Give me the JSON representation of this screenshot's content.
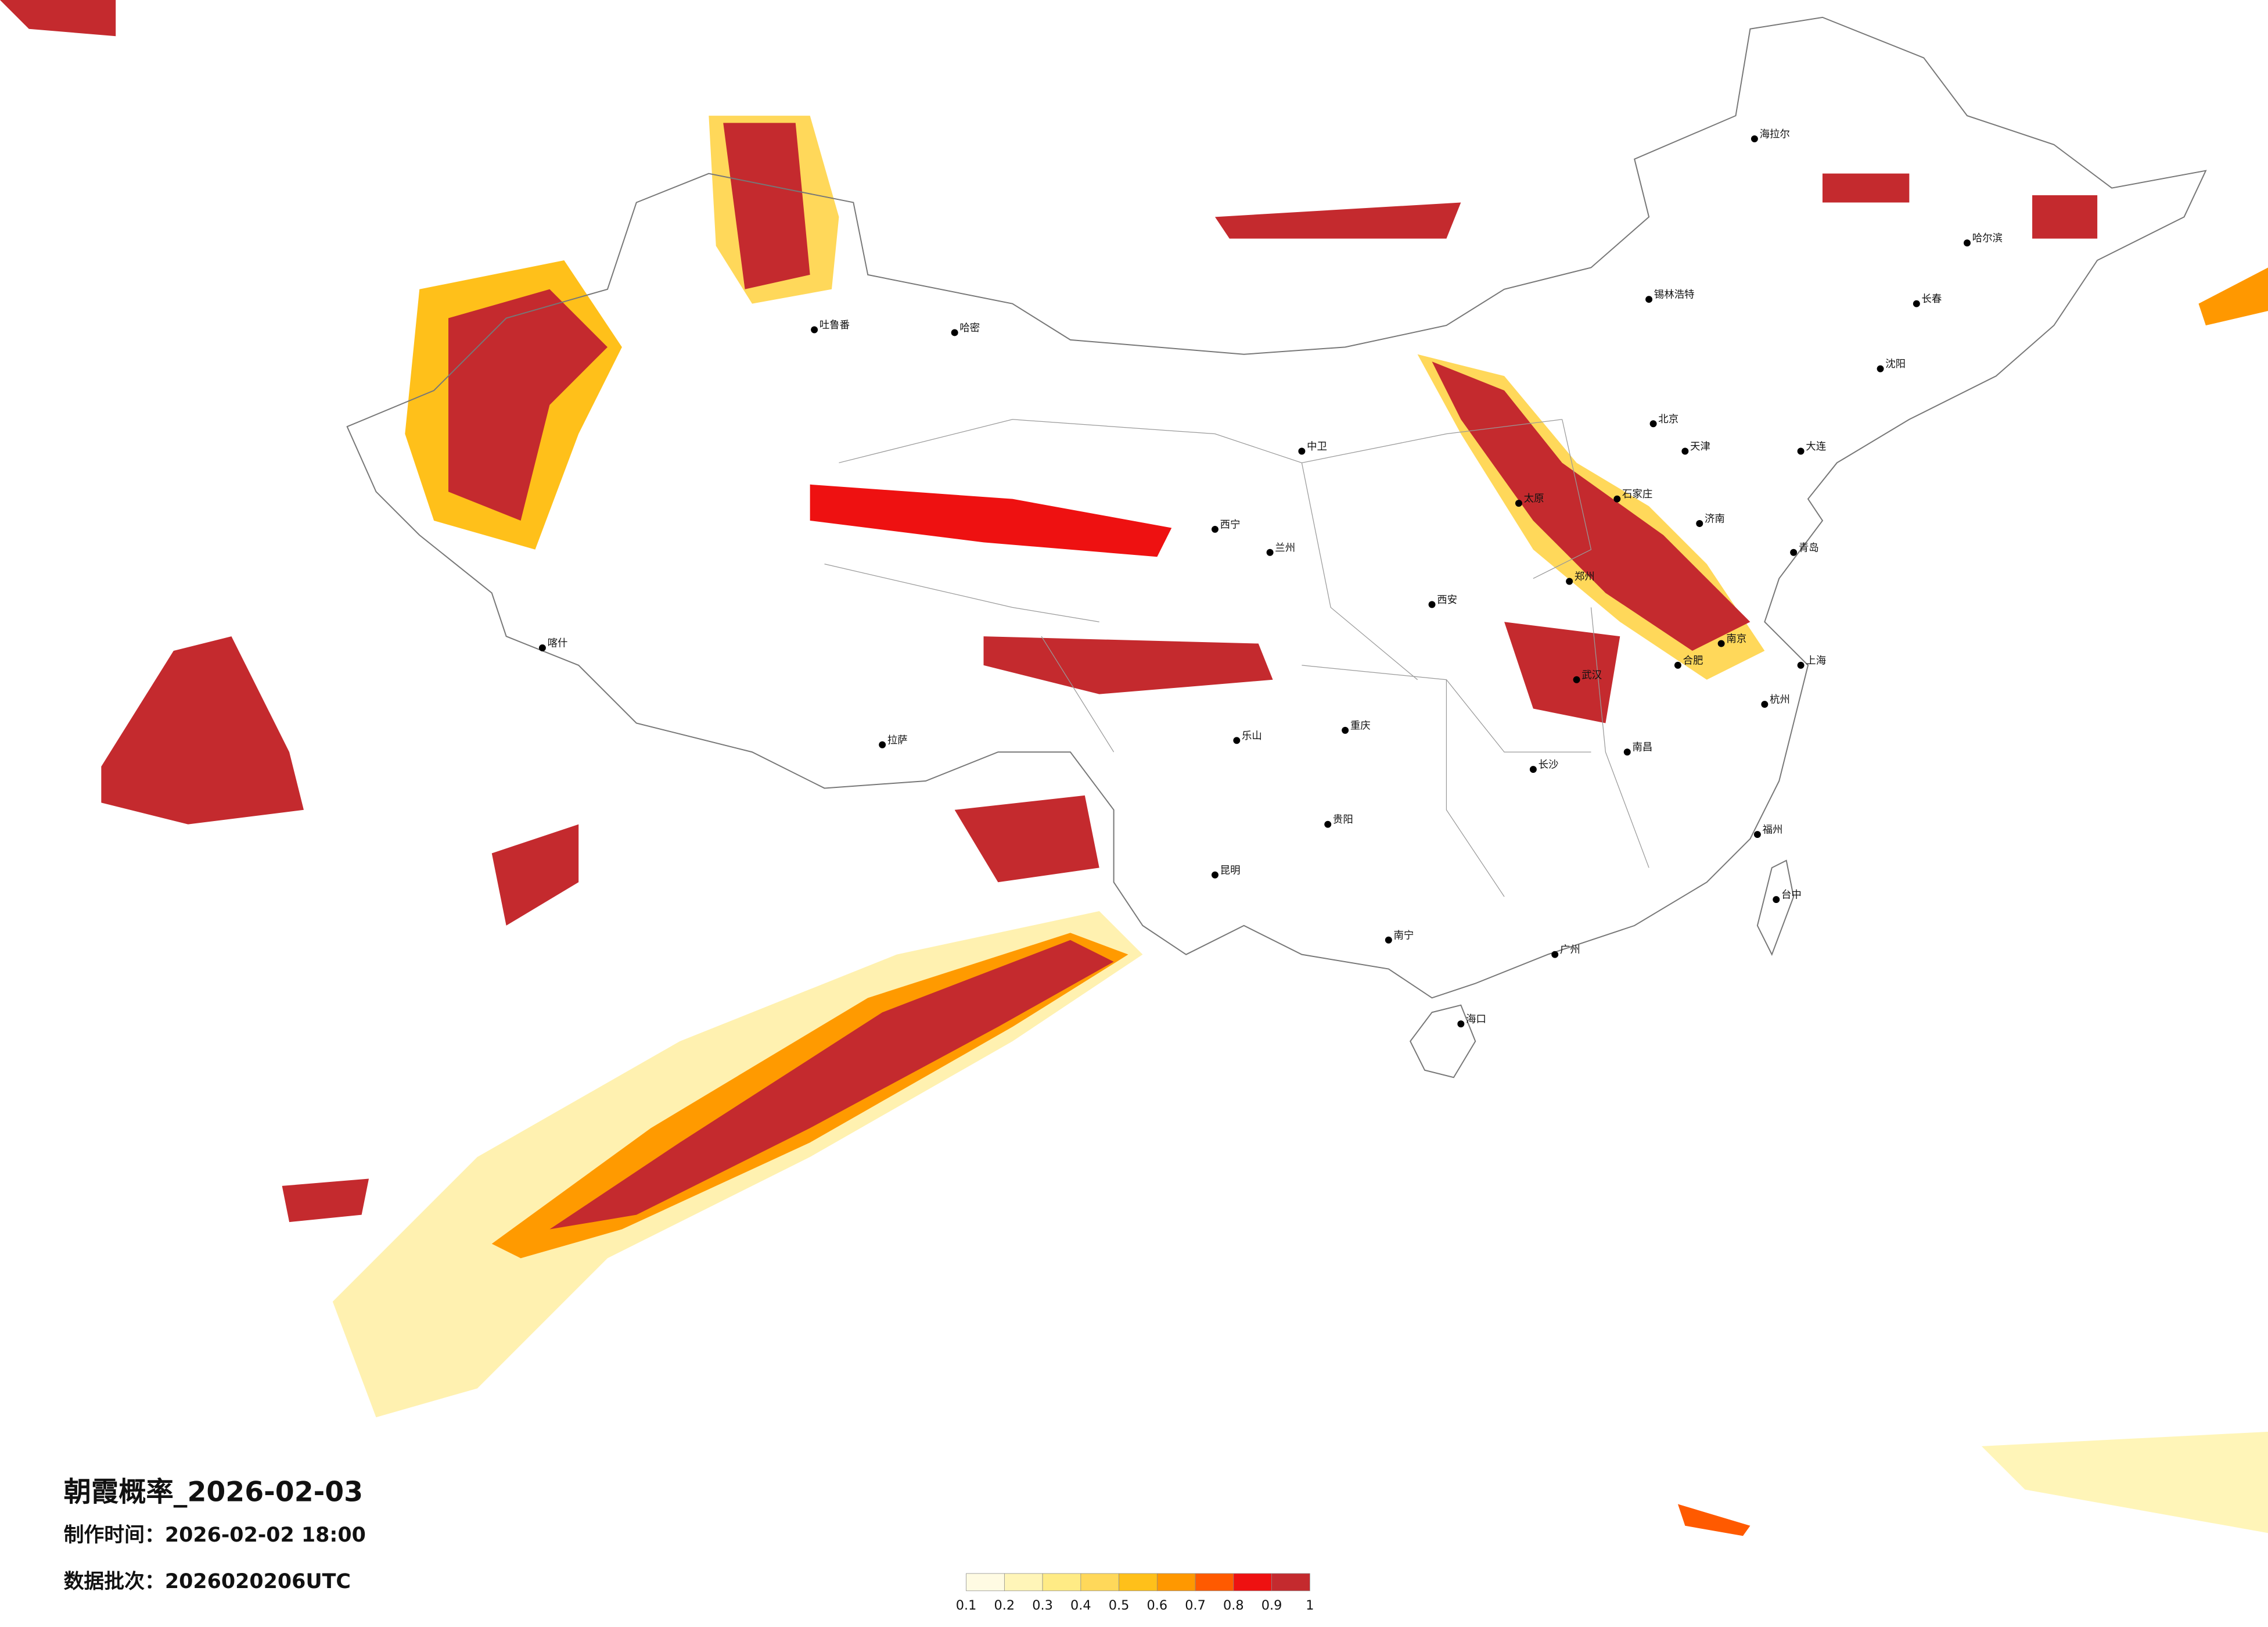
{
  "header": {
    "title": "朝霞概率_2026-02-03",
    "production_time": "制作时间：2026-02-02 18:00",
    "data_batch": "数据批次：2026020206UTC"
  },
  "legend": {
    "colors": [
      "#fffbe3",
      "#fff5b8",
      "#ffeb85",
      "#ffd85a",
      "#ffc01a",
      "#ff9800",
      "#ff5a00",
      "#ee1111",
      "#c42a2e"
    ],
    "ticks": [
      0.1,
      0.2,
      0.3,
      0.4,
      0.5,
      0.6,
      0.7,
      0.8,
      0.9,
      1
    ]
  },
  "cities": [
    "北京",
    "天津",
    "石家庄",
    "太原",
    "锡林浩特",
    "济南",
    "郑州",
    "西安",
    "兰州",
    "西宁",
    "中卫",
    "乐山",
    "重庆",
    "贵阳",
    "昆明",
    "南宁",
    "广州",
    "长沙",
    "武汉",
    "南昌",
    "合肥",
    "南京",
    "上海",
    "杭州",
    "福州",
    "台中",
    "海口",
    "哈尔滨",
    "长春",
    "沈阳",
    "拉萨",
    "吐鲁番",
    "哈密",
    "喀什",
    "大连",
    "青岛",
    "海拉尔"
  ]
}
